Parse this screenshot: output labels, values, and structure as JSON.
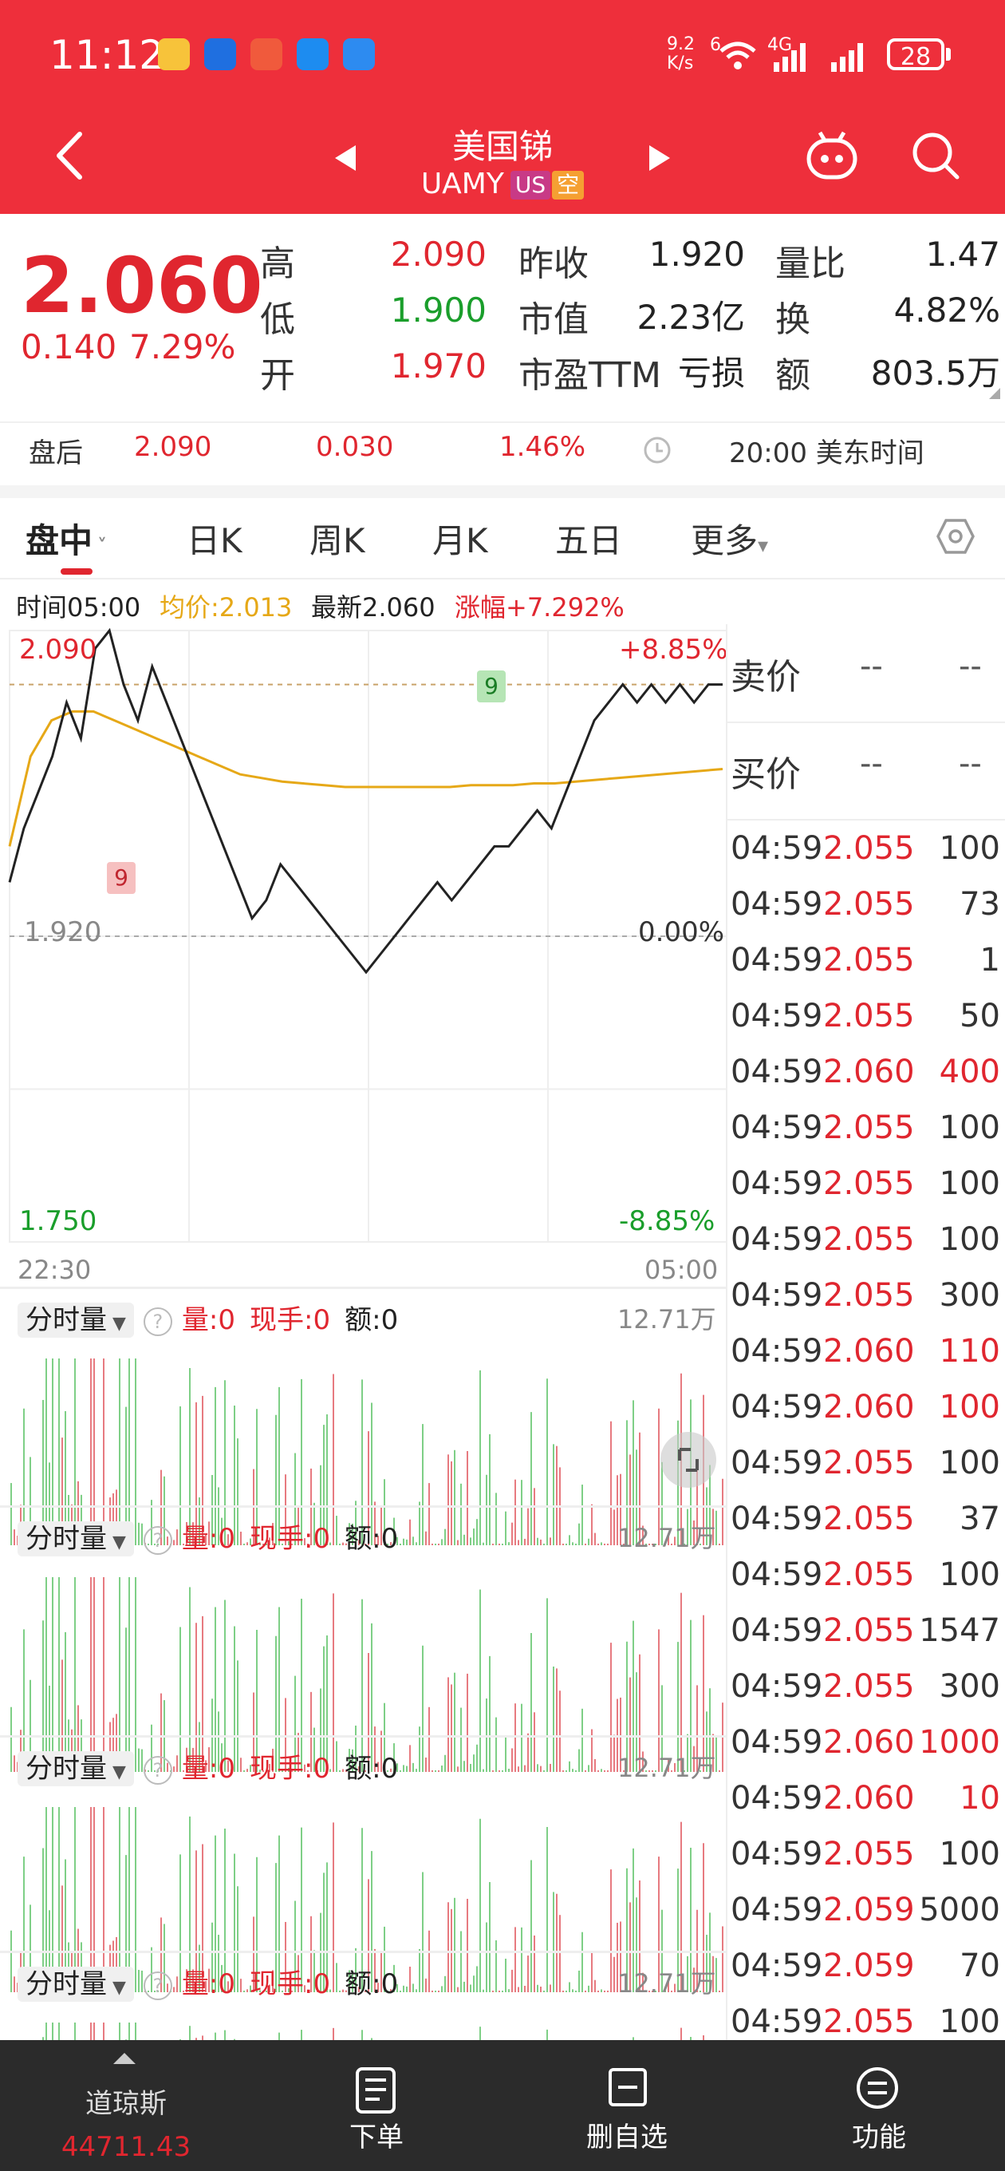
{
  "status_bar": {
    "time": "11:12",
    "net_speed": "9.2\nK/s",
    "signal_a": "6",
    "signal_b": "4G",
    "battery": "28"
  },
  "header": {
    "title": "美国锑",
    "ticker": "UAMY",
    "tag_market": "US",
    "tag_short": "空"
  },
  "quote": {
    "price": "2.060",
    "change": "0.140",
    "change_pct": "7.29%",
    "rows": [
      {
        "l1": "高",
        "v1": "2.090",
        "l2": "昨收",
        "v2": "1.920",
        "l3": "量比",
        "v3": "1.47"
      },
      {
        "l1": "低",
        "v1": "1.900",
        "l2": "市值",
        "v2": "2.23亿",
        "l3": "换",
        "v3": "4.82%"
      },
      {
        "l1": "开",
        "v1": "1.970",
        "l2": "市盈TTM",
        "v2": "亏损",
        "l3": "额",
        "v3": "803.5万"
      }
    ]
  },
  "after_hours": {
    "label": "盘后",
    "price": "2.090",
    "change": "0.030",
    "pct": "1.46%",
    "time": "20:00 美东时间"
  },
  "tabs": [
    "盘中",
    "日K",
    "周K",
    "月K",
    "五日",
    "更多"
  ],
  "info_bar": {
    "time": "时间05:00",
    "avg": "均价:2.013",
    "latest": "最新2.060",
    "gain": "涨幅+7.292%"
  },
  "chart_data": {
    "type": "line",
    "y_top_label": "2.090",
    "y_mid_label": "1.920",
    "y_bottom_label": "1.750",
    "pct_top": "+8.85%",
    "pct_mid": "0.00%",
    "pct_bottom": "-8.85%",
    "x_start": "22:30",
    "x_end": "05:00",
    "marker_label": "9",
    "ylim": [
      1.75,
      2.09
    ],
    "price": [
      1.95,
      1.98,
      2.0,
      2.02,
      2.05,
      2.03,
      2.08,
      2.09,
      2.06,
      2.04,
      2.07,
      2.05,
      2.03,
      2.01,
      1.99,
      1.97,
      1.95,
      1.93,
      1.94,
      1.96,
      1.95,
      1.94,
      1.93,
      1.92,
      1.91,
      1.9,
      1.91,
      1.92,
      1.93,
      1.94,
      1.95,
      1.94,
      1.95,
      1.96,
      1.97,
      1.97,
      1.98,
      1.99,
      1.98,
      2.0,
      2.02,
      2.04,
      2.05,
      2.06,
      2.05,
      2.06,
      2.05,
      2.06,
      2.05,
      2.06,
      2.06
    ],
    "avg": [
      1.97,
      2.02,
      2.04,
      2.045,
      2.045,
      2.04,
      2.035,
      2.03,
      2.025,
      2.02,
      2.015,
      2.01,
      2.008,
      2.006,
      2.005,
      2.004,
      2.003,
      2.003,
      2.003,
      2.003,
      2.003,
      2.003,
      2.004,
      2.004,
      2.004,
      2.005,
      2.005,
      2.006,
      2.007,
      2.008,
      2.009,
      2.01,
      2.011,
      2.012,
      2.013
    ]
  },
  "side_book": {
    "ask_label": "卖价",
    "bid_label": "买价",
    "placeholder": "--"
  },
  "trades": [
    {
      "t": "04:59",
      "p": "2.055",
      "v": "100",
      "up": false
    },
    {
      "t": "04:59",
      "p": "2.055",
      "v": "73",
      "up": false
    },
    {
      "t": "04:59",
      "p": "2.055",
      "v": "1",
      "up": false
    },
    {
      "t": "04:59",
      "p": "2.055",
      "v": "50",
      "up": false
    },
    {
      "t": "04:59",
      "p": "2.060",
      "v": "400",
      "up": true
    },
    {
      "t": "04:59",
      "p": "2.055",
      "v": "100",
      "up": false
    },
    {
      "t": "04:59",
      "p": "2.055",
      "v": "100",
      "up": false
    },
    {
      "t": "04:59",
      "p": "2.055",
      "v": "100",
      "up": false
    },
    {
      "t": "04:59",
      "p": "2.055",
      "v": "300",
      "up": false
    },
    {
      "t": "04:59",
      "p": "2.060",
      "v": "110",
      "up": true
    },
    {
      "t": "04:59",
      "p": "2.060",
      "v": "100",
      "up": true
    },
    {
      "t": "04:59",
      "p": "2.055",
      "v": "100",
      "up": false
    },
    {
      "t": "04:59",
      "p": "2.055",
      "v": "37",
      "up": false
    },
    {
      "t": "04:59",
      "p": "2.055",
      "v": "100",
      "up": false
    },
    {
      "t": "04:59",
      "p": "2.055",
      "v": "1547",
      "up": false
    },
    {
      "t": "04:59",
      "p": "2.055",
      "v": "300",
      "up": false
    },
    {
      "t": "04:59",
      "p": "2.060",
      "v": "1000",
      "up": true
    },
    {
      "t": "04:59",
      "p": "2.060",
      "v": "10",
      "up": true
    },
    {
      "t": "04:59",
      "p": "2.055",
      "v": "100",
      "up": false
    },
    {
      "t": "04:59",
      "p": "2.059",
      "v": "5000",
      "up": false
    },
    {
      "t": "04:59",
      "p": "2.059",
      "v": "70",
      "up": false
    },
    {
      "t": "04:59",
      "p": "2.055",
      "v": "100",
      "up": false
    }
  ],
  "volume_panel": {
    "name": "分时量",
    "vol": "量:0",
    "cur": "现手:0",
    "amt": "额:0",
    "max": "12.71万"
  },
  "bottom_nav": {
    "index_name": "道琼斯",
    "index_value": "44711.43",
    "order": "下单",
    "remove_watch": "删自选",
    "functions": "功能"
  },
  "colors": {
    "header_bg": "#ee2f3b",
    "up": "#e0262f",
    "down": "#1a9e2b",
    "avg_line": "#e6a817",
    "nav_bg": "#2b2b2b"
  }
}
